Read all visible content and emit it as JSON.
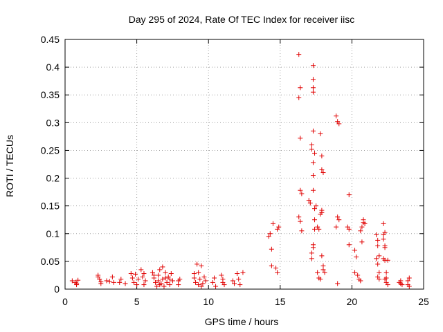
{
  "chart_data": {
    "type": "scatter",
    "title": "Day 295 of 2024, Rate Of TEC Index for receiver iisc",
    "xlabel": "GPS time / hours",
    "ylabel": "ROTI / TECUs",
    "xlim": [
      0,
      25
    ],
    "ylim": [
      0,
      0.45
    ],
    "grid": true,
    "marker": "+",
    "color": "#e00000",
    "x_ticks": [
      "0",
      "5",
      "10",
      "15",
      "20",
      "25"
    ],
    "y_ticks": [
      "0",
      "0.05",
      "0.1",
      "0.15",
      "0.2",
      "0.25",
      "0.3",
      "0.35",
      "0.4",
      "0.45"
    ],
    "series": [
      {
        "name": "ROTI",
        "points": [
          [
            0.5,
            0.015
          ],
          [
            0.7,
            0.012
          ],
          [
            0.8,
            0.008
          ],
          [
            0.9,
            0.016
          ],
          [
            0.8,
            0.01
          ],
          [
            2.3,
            0.025
          ],
          [
            2.4,
            0.018
          ],
          [
            2.5,
            0.013
          ],
          [
            2.3,
            0.022
          ],
          [
            2.5,
            0.01
          ],
          [
            2.9,
            0.015
          ],
          [
            3.1,
            0.014
          ],
          [
            3.3,
            0.022
          ],
          [
            3.4,
            0.012
          ],
          [
            3.8,
            0.012
          ],
          [
            3.9,
            0.018
          ],
          [
            4.2,
            0.01
          ],
          [
            4.6,
            0.028
          ],
          [
            4.7,
            0.02
          ],
          [
            4.8,
            0.012
          ],
          [
            4.9,
            0.027
          ],
          [
            5.0,
            0.008
          ],
          [
            5.1,
            0.018
          ],
          [
            5.3,
            0.035
          ],
          [
            5.4,
            0.022
          ],
          [
            5.5,
            0.008
          ],
          [
            5.6,
            0.015
          ],
          [
            5.5,
            0.028
          ],
          [
            6.1,
            0.03
          ],
          [
            6.2,
            0.02
          ],
          [
            6.3,
            0.012
          ],
          [
            6.4,
            0.005
          ],
          [
            6.5,
            0.025
          ],
          [
            6.5,
            0.015
          ],
          [
            6.6,
            0.035
          ],
          [
            6.7,
            0.01
          ],
          [
            6.8,
            0.04
          ],
          [
            6.8,
            0.018
          ],
          [
            6.9,
            0.005
          ],
          [
            7.0,
            0.03
          ],
          [
            7.1,
            0.012
          ],
          [
            7.2,
            0.022
          ],
          [
            7.3,
            0.008
          ],
          [
            7.3,
            0.018
          ],
          [
            7.4,
            0.028
          ],
          [
            7.5,
            0.015
          ],
          [
            7.0,
            0.02
          ],
          [
            6.6,
            0.008
          ],
          [
            6.2,
            0.025
          ],
          [
            7.9,
            0.015
          ],
          [
            7.9,
            0.008
          ],
          [
            8.0,
            0.018
          ],
          [
            9.0,
            0.02
          ],
          [
            9.1,
            0.012
          ],
          [
            9.2,
            0.045
          ],
          [
            9.3,
            0.03
          ],
          [
            9.4,
            0.018
          ],
          [
            9.5,
            0.042
          ],
          [
            9.6,
            0.01
          ],
          [
            9.7,
            0.022
          ],
          [
            9.8,
            0.015
          ],
          [
            9.5,
            0.005
          ],
          [
            9.0,
            0.028
          ],
          [
            9.3,
            0.008
          ],
          [
            10.3,
            0.012
          ],
          [
            10.4,
            0.02
          ],
          [
            10.5,
            0.005
          ],
          [
            10.9,
            0.025
          ],
          [
            11.0,
            0.012
          ],
          [
            11.1,
            0.008
          ],
          [
            11.0,
            0.018
          ],
          [
            11.7,
            0.015
          ],
          [
            11.8,
            0.01
          ],
          [
            12.0,
            0.028
          ],
          [
            12.1,
            0.018
          ],
          [
            12.2,
            0.008
          ],
          [
            12.4,
            0.03
          ],
          [
            14.2,
            0.095
          ],
          [
            14.3,
            0.1
          ],
          [
            14.4,
            0.072
          ],
          [
            14.5,
            0.118
          ],
          [
            14.4,
            0.042
          ],
          [
            14.7,
            0.038
          ],
          [
            14.8,
            0.03
          ],
          [
            14.9,
            0.112
          ],
          [
            14.8,
            0.108
          ],
          [
            16.3,
            0.423
          ],
          [
            16.4,
            0.363
          ],
          [
            16.3,
            0.345
          ],
          [
            16.4,
            0.272
          ],
          [
            16.4,
            0.178
          ],
          [
            16.5,
            0.172
          ],
          [
            16.3,
            0.13
          ],
          [
            16.4,
            0.122
          ],
          [
            16.5,
            0.105
          ],
          [
            17.0,
            0.16
          ],
          [
            17.1,
            0.155
          ],
          [
            17.2,
            0.26
          ],
          [
            17.2,
            0.252
          ],
          [
            17.3,
            0.403
          ],
          [
            17.3,
            0.378
          ],
          [
            17.3,
            0.363
          ],
          [
            17.3,
            0.355
          ],
          [
            17.3,
            0.285
          ],
          [
            17.4,
            0.245
          ],
          [
            17.3,
            0.228
          ],
          [
            17.3,
            0.205
          ],
          [
            17.3,
            0.178
          ],
          [
            17.4,
            0.145
          ],
          [
            17.4,
            0.125
          ],
          [
            17.4,
            0.108
          ],
          [
            17.3,
            0.08
          ],
          [
            17.3,
            0.075
          ],
          [
            17.2,
            0.065
          ],
          [
            17.2,
            0.055
          ],
          [
            17.5,
            0.15
          ],
          [
            17.6,
            0.112
          ],
          [
            17.7,
            0.108
          ],
          [
            17.6,
            0.03
          ],
          [
            17.7,
            0.02
          ],
          [
            17.8,
            0.018
          ],
          [
            17.8,
            0.28
          ],
          [
            17.9,
            0.24
          ],
          [
            17.9,
            0.215
          ],
          [
            18.0,
            0.21
          ],
          [
            17.9,
            0.142
          ],
          [
            17.9,
            0.138
          ],
          [
            17.8,
            0.135
          ],
          [
            17.9,
            0.06
          ],
          [
            18.0,
            0.042
          ],
          [
            18.0,
            0.035
          ],
          [
            18.1,
            0.03
          ],
          [
            18.9,
            0.312
          ],
          [
            19.0,
            0.302
          ],
          [
            19.1,
            0.298
          ],
          [
            19.0,
            0.13
          ],
          [
            19.1,
            0.125
          ],
          [
            18.9,
            0.112
          ],
          [
            19.0,
            0.01
          ],
          [
            19.7,
            0.112
          ],
          [
            19.8,
            0.108
          ],
          [
            19.8,
            0.08
          ],
          [
            19.8,
            0.17
          ],
          [
            20.2,
            0.07
          ],
          [
            20.3,
            0.058
          ],
          [
            20.2,
            0.03
          ],
          [
            20.4,
            0.025
          ],
          [
            20.5,
            0.018
          ],
          [
            20.6,
            0.015
          ],
          [
            20.6,
            0.105
          ],
          [
            20.7,
            0.085
          ],
          [
            20.7,
            0.112
          ],
          [
            20.8,
            0.12
          ],
          [
            20.8,
            0.125
          ],
          [
            20.9,
            0.118
          ],
          [
            21.7,
            0.098
          ],
          [
            21.8,
            0.088
          ],
          [
            21.8,
            0.078
          ],
          [
            21.7,
            0.055
          ],
          [
            21.8,
            0.045
          ],
          [
            21.9,
            0.03
          ],
          [
            21.8,
            0.022
          ],
          [
            21.9,
            0.018
          ],
          [
            21.9,
            0.06
          ],
          [
            22.2,
            0.118
          ],
          [
            22.3,
            0.102
          ],
          [
            22.2,
            0.098
          ],
          [
            22.2,
            0.09
          ],
          [
            22.3,
            0.078
          ],
          [
            22.3,
            0.075
          ],
          [
            22.2,
            0.055
          ],
          [
            22.3,
            0.052
          ],
          [
            22.4,
            0.03
          ],
          [
            22.4,
            0.02
          ],
          [
            22.3,
            0.018
          ],
          [
            22.4,
            0.012
          ],
          [
            22.5,
            0.008
          ],
          [
            22.5,
            0.052
          ],
          [
            23.3,
            0.012
          ],
          [
            23.4,
            0.01
          ],
          [
            23.5,
            0.008
          ],
          [
            23.4,
            0.015
          ],
          [
            23.9,
            0.015
          ],
          [
            23.9,
            0.008
          ],
          [
            24.0,
            0.02
          ],
          [
            24.0,
            0.005
          ]
        ]
      }
    ]
  }
}
